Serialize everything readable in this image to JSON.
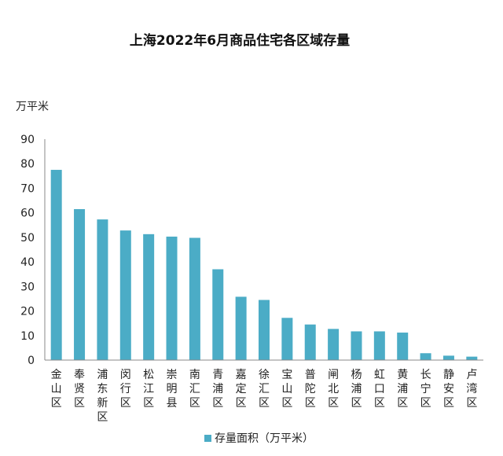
{
  "chart_data": {
    "type": "bar",
    "title": "上海2022年6月商品住宅各区域存量",
    "ylabel": "万平米",
    "xlabel": "",
    "ylim": [
      0,
      90
    ],
    "yticks": [
      0,
      10,
      20,
      30,
      40,
      50,
      60,
      70,
      80,
      90
    ],
    "grid": false,
    "legend_position": "bottom",
    "bar_color": "#4BACC6",
    "categories": [
      "金山区",
      "奉贤区",
      "浦东新区",
      "闵行区",
      "松江区",
      "崇明县",
      "南汇区",
      "青浦区",
      "嘉定区",
      "徐汇区",
      "宝山区",
      "普陀区",
      "闸北区",
      "杨浦区",
      "虹口区",
      "黄浦区",
      "长宁区",
      "静安区",
      "卢湾区"
    ],
    "series": [
      {
        "name": "存量面积（万平米）",
        "values": [
          77.5,
          61.5,
          57.3,
          52.8,
          51.3,
          50.3,
          49.8,
          37.0,
          25.8,
          24.5,
          17.2,
          14.5,
          12.7,
          11.7,
          11.7,
          11.2,
          2.8,
          1.8,
          1.4
        ]
      }
    ]
  }
}
